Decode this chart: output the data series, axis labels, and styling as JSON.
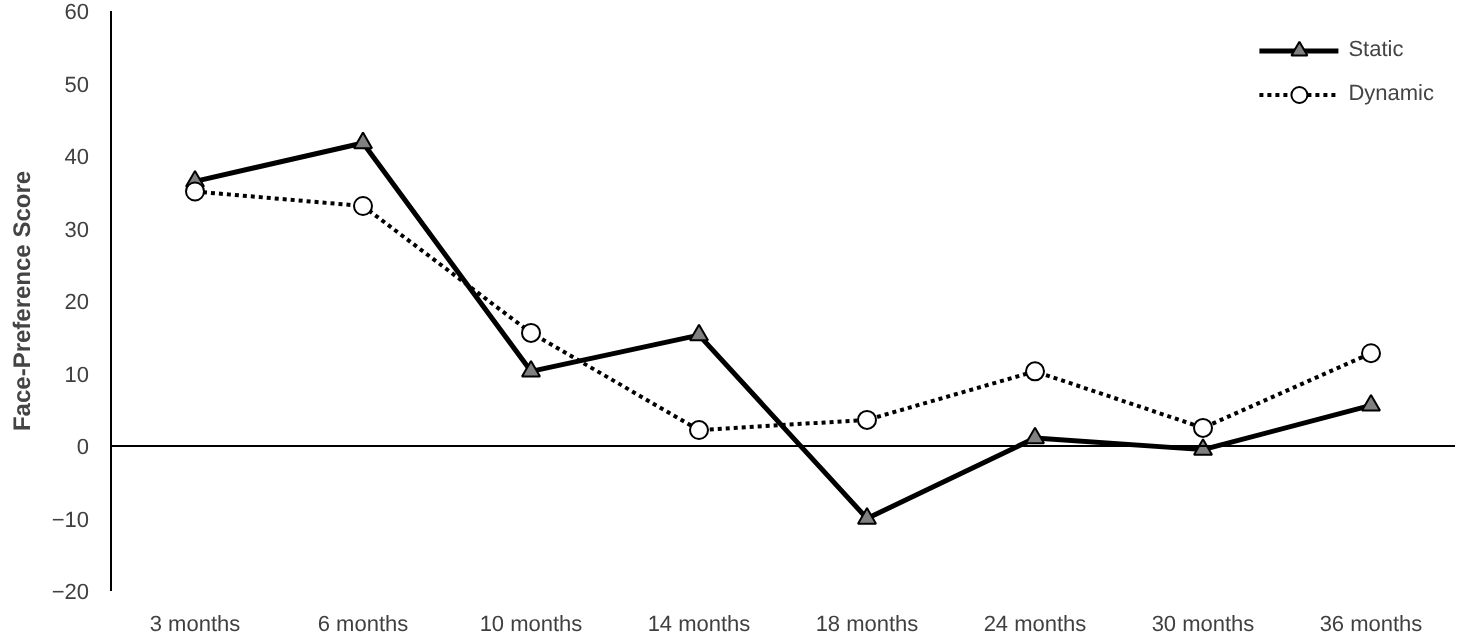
{
  "chart_data": {
    "type": "line",
    "ylabel": "Face-Preference Score",
    "categories": [
      "3 months",
      "6 months",
      "10 months",
      "14 months",
      "18 months",
      "24 months",
      "30 months",
      "36 months"
    ],
    "ylim": [
      -20,
      60
    ],
    "yticks": [
      -20,
      -10,
      0,
      10,
      20,
      30,
      40,
      50,
      60
    ],
    "grid": false,
    "legend": "top right",
    "ref_lines": [
      {
        "axis": "y",
        "value": 0,
        "color": "#000000"
      }
    ],
    "series": [
      {
        "name": "Static",
        "color": "#000000",
        "marker": "triangle",
        "line_style": "solid",
        "values": [
          36.5,
          41.8,
          10.3,
          15.3,
          -10,
          1.1,
          -0.5,
          5.6
        ]
      },
      {
        "name": "Dynamic",
        "color": "#000000",
        "marker": "circle",
        "line_style": "dotted",
        "values": [
          35.1,
          33.1,
          15.6,
          2.2,
          3.6,
          10.3,
          2.5,
          12.8
        ]
      }
    ]
  }
}
